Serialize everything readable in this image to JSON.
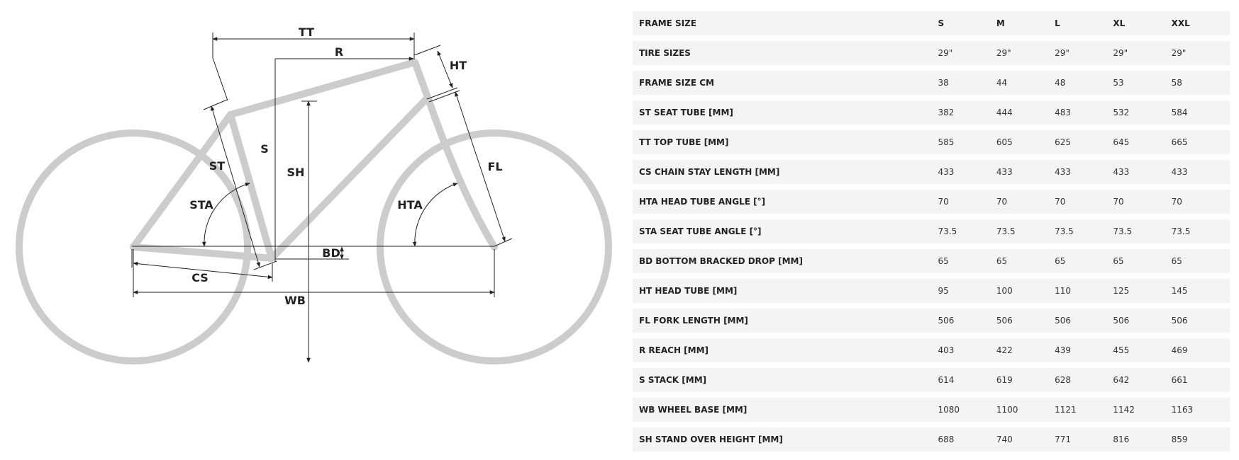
{
  "diagram": {
    "labels": {
      "tt": "TT",
      "r": "R",
      "ht": "HT",
      "s": "S",
      "sh": "SH",
      "st": "ST",
      "sta": "STA",
      "fl": "FL",
      "hta": "HTA",
      "bd": "BD",
      "cs": "CS",
      "wb": "WB"
    },
    "colors": {
      "frame": "#cccccc",
      "lines": "#222222"
    }
  },
  "table": {
    "header": {
      "label": "FRAME SIZE",
      "sizes": [
        "S",
        "M",
        "L",
        "XL",
        "XXL"
      ]
    },
    "rows": [
      {
        "label": "TIRE SIZES",
        "values": [
          "29\"",
          "29\"",
          "29\"",
          "29\"",
          "29\""
        ]
      },
      {
        "label": "FRAME SIZE CM",
        "values": [
          "38",
          "44",
          "48",
          "53",
          "58"
        ]
      },
      {
        "label": "ST SEAT TUBE [MM]",
        "values": [
          "382",
          "444",
          "483",
          "532",
          "584"
        ]
      },
      {
        "label": "TT TOP TUBE [MM]",
        "values": [
          "585",
          "605",
          "625",
          "645",
          "665"
        ]
      },
      {
        "label": "CS CHAIN STAY LENGTH [MM]",
        "values": [
          "433",
          "433",
          "433",
          "433",
          "433"
        ]
      },
      {
        "label": "HTA HEAD TUBE ANGLE [°]",
        "values": [
          "70",
          "70",
          "70",
          "70",
          "70"
        ]
      },
      {
        "label": "STA SEAT TUBE ANGLE [°]",
        "values": [
          "73.5",
          "73.5",
          "73.5",
          "73.5",
          "73.5"
        ]
      },
      {
        "label": "BD BOTTOM BRACKED DROP [MM]",
        "values": [
          "65",
          "65",
          "65",
          "65",
          "65"
        ]
      },
      {
        "label": "HT HEAD TUBE [MM]",
        "values": [
          "95",
          "100",
          "110",
          "125",
          "145"
        ]
      },
      {
        "label": "FL FORK LENGTH [MM]",
        "values": [
          "506",
          "506",
          "506",
          "506",
          "506"
        ]
      },
      {
        "label": "R REACH [MM]",
        "values": [
          "403",
          "422",
          "439",
          "455",
          "469"
        ]
      },
      {
        "label": "S STACK [MM]",
        "values": [
          "614",
          "619",
          "628",
          "642",
          "661"
        ]
      },
      {
        "label": "WB WHEEL BASE [MM]",
        "values": [
          "1080",
          "1100",
          "1121",
          "1142",
          "1163"
        ]
      },
      {
        "label": "SH STAND OVER HEIGHT [MM]",
        "values": [
          "688",
          "740",
          "771",
          "816",
          "859"
        ]
      }
    ]
  }
}
